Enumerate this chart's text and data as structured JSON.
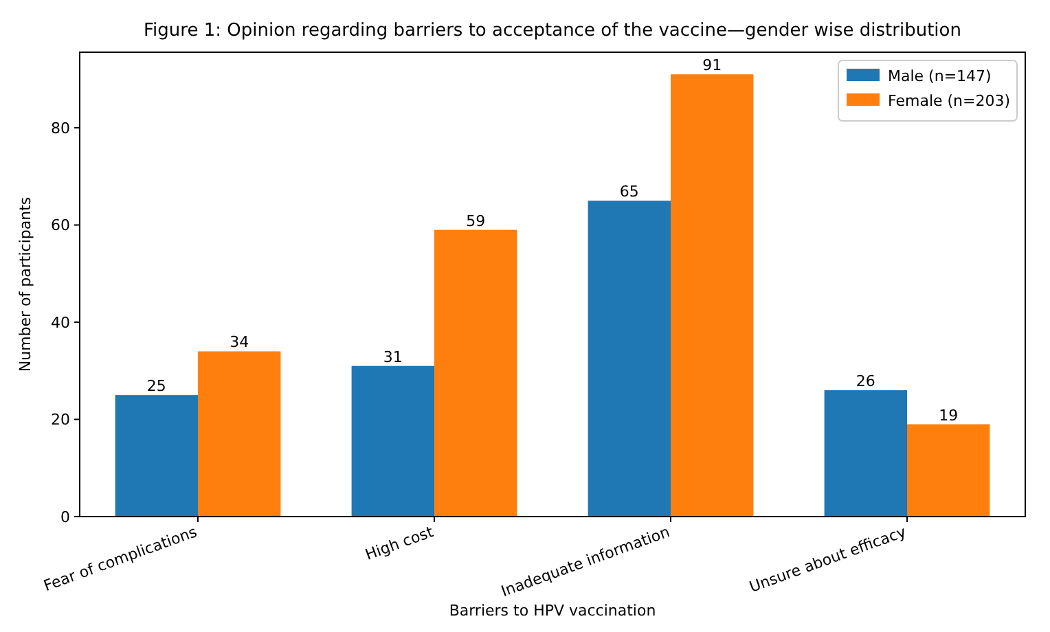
{
  "chart_data": {
    "type": "bar",
    "title": "Figure 1: Opinion regarding barriers to acceptance of the vaccine—gender wise distribution",
    "xlabel": "Barriers to HPV vaccination",
    "ylabel": "Number of participants",
    "categories": [
      "Fear of complications",
      "High cost",
      "Inadequate information",
      "Unsure about efficacy"
    ],
    "series": [
      {
        "name": "Male (n=147)",
        "color": "#1f77b4",
        "values": [
          25,
          31,
          65,
          26
        ]
      },
      {
        "name": "Female (n=203)",
        "color": "#ff7f0e",
        "values": [
          34,
          59,
          91,
          19
        ]
      }
    ],
    "ylim": [
      0,
      95.55
    ],
    "yticks": [
      0,
      20,
      40,
      60,
      80
    ],
    "data_labels": true,
    "legend": "top right",
    "grid": false
  }
}
